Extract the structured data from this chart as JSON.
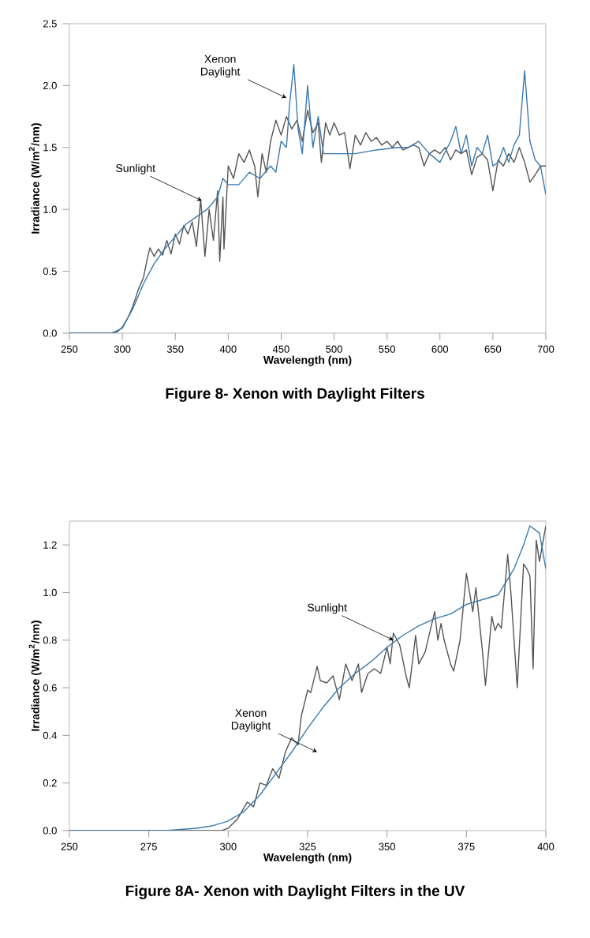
{
  "chart_data": [
    {
      "type": "line",
      "title": "Figure 8- Xenon with Daylight Filters",
      "xlabel": "Wavelength (nm)",
      "ylabel": "Irradiance (W/m$^{2}$/nm)",
      "xlim": [
        250,
        700
      ],
      "ylim": [
        0,
        2.5
      ],
      "xticks": [
        250,
        300,
        350,
        400,
        450,
        500,
        550,
        600,
        650,
        700
      ],
      "yticks": [
        {
          "value": 0,
          "label": "0.0"
        },
        {
          "value": 0.5,
          "label": "0.5"
        },
        {
          "value": 1,
          "label": "1.0"
        },
        {
          "value": 1.5,
          "label": "1.5"
        },
        {
          "value": 2,
          "label": "2.0"
        },
        {
          "value": 2.5,
          "label": "2.5"
        }
      ],
      "series": [
        {
          "color": "#555555",
          "x": [
            250,
            290,
            295,
            300,
            305,
            310,
            315,
            320,
            323,
            326,
            330,
            334,
            338,
            342,
            346,
            350,
            354,
            358,
            362,
            366,
            370,
            374,
            378,
            382,
            386,
            390,
            392,
            395,
            396,
            400,
            405,
            410,
            415,
            420,
            425,
            428,
            432,
            436,
            440,
            445,
            450,
            455,
            460,
            465,
            470,
            475,
            480,
            485,
            488,
            492,
            496,
            500,
            505,
            510,
            515,
            520,
            525,
            530,
            535,
            540,
            545,
            550,
            555,
            560,
            565,
            570,
            575,
            580,
            585,
            590,
            595,
            600,
            605,
            610,
            615,
            620,
            625,
            630,
            635,
            640,
            645,
            650,
            655,
            660,
            665,
            670,
            675,
            680,
            685,
            690,
            695,
            700
          ],
          "values": [
            0,
            0,
            0.01,
            0.05,
            0.12,
            0.22,
            0.35,
            0.45,
            0.58,
            0.69,
            0.62,
            0.68,
            0.63,
            0.75,
            0.64,
            0.8,
            0.72,
            0.87,
            0.8,
            0.9,
            0.7,
            1.08,
            0.62,
            1.0,
            0.75,
            1.15,
            0.58,
            1.1,
            0.68,
            1.35,
            1.25,
            1.45,
            1.38,
            1.48,
            1.35,
            1.1,
            1.45,
            1.3,
            1.55,
            1.72,
            1.6,
            1.75,
            1.65,
            1.72,
            1.55,
            1.8,
            1.62,
            1.7,
            1.38,
            1.7,
            1.6,
            1.7,
            1.6,
            1.62,
            1.33,
            1.6,
            1.52,
            1.62,
            1.55,
            1.58,
            1.52,
            1.55,
            1.5,
            1.55,
            1.48,
            1.5,
            1.52,
            1.5,
            1.35,
            1.45,
            1.48,
            1.45,
            1.5,
            1.4,
            1.48,
            1.45,
            1.48,
            1.28,
            1.42,
            1.45,
            1.4,
            1.15,
            1.4,
            1.35,
            1.45,
            1.38,
            1.5,
            1.38,
            1.22,
            1.28,
            1.35,
            1.35
          ]
        },
        {
          "color": "#3a7ab0",
          "x": [
            250,
            290,
            300,
            310,
            320,
            330,
            340,
            350,
            360,
            370,
            380,
            390,
            395,
            400,
            410,
            420,
            430,
            440,
            445,
            450,
            455,
            458,
            462,
            466,
            470,
            475,
            480,
            485,
            490,
            500,
            520,
            540,
            560,
            570,
            580,
            590,
            600,
            610,
            615,
            620,
            625,
            630,
            635,
            640,
            645,
            650,
            655,
            660,
            665,
            670,
            675,
            680,
            685,
            690,
            695,
            700
          ],
          "values": [
            0,
            0,
            0.04,
            0.2,
            0.4,
            0.56,
            0.68,
            0.78,
            0.88,
            0.94,
            1.0,
            1.1,
            1.25,
            1.2,
            1.2,
            1.3,
            1.25,
            1.35,
            1.3,
            1.55,
            1.5,
            1.85,
            2.17,
            1.65,
            1.45,
            2.0,
            1.5,
            1.75,
            1.45,
            1.45,
            1.45,
            1.48,
            1.5,
            1.5,
            1.55,
            1.45,
            1.38,
            1.55,
            1.67,
            1.45,
            1.6,
            1.35,
            1.5,
            1.45,
            1.6,
            1.35,
            1.38,
            1.5,
            1.38,
            1.52,
            1.6,
            2.12,
            1.55,
            1.4,
            1.35,
            1.12
          ]
        }
      ],
      "annotations": [
        {
          "text": "Sunlight",
          "x": 375,
          "y": 1.07
        },
        {
          "text": "Xenon Daylight",
          "x": 455,
          "y": 1.9
        }
      ]
    },
    {
      "type": "line",
      "title": "Figure 8A- Xenon with Daylight Filters in the UV",
      "xlabel": "Wavelength (nm)",
      "ylabel": "Irradiance (W/m$^{2}$/nm)",
      "xlim": [
        250,
        400
      ],
      "ylim": [
        0,
        1.3
      ],
      "xticks": [
        250,
        275,
        300,
        325,
        350,
        375,
        400
      ],
      "yticks": [
        {
          "value": 0,
          "label": "0.0"
        },
        0.2,
        0.4,
        0.6,
        0.8,
        {
          "value": 1,
          "label": "1.0"
        },
        1.2
      ],
      "series": [
        {
          "color": "#555555",
          "x": [
            250,
            298,
            300,
            303,
            306,
            308,
            310,
            312,
            314,
            316,
            318,
            320,
            322,
            323,
            325,
            326,
            328,
            329,
            331,
            333,
            335,
            337,
            339,
            341,
            342,
            344,
            346,
            348,
            350,
            351,
            352,
            354,
            356,
            357,
            359,
            360,
            362,
            365,
            366,
            367,
            368,
            370,
            371,
            373,
            375,
            376,
            377,
            378,
            380,
            381,
            383,
            384,
            385,
            386,
            388,
            389,
            391,
            393,
            394,
            395,
            396,
            397,
            398,
            400
          ],
          "values": [
            0,
            0,
            0.01,
            0.05,
            0.12,
            0.1,
            0.2,
            0.19,
            0.26,
            0.22,
            0.33,
            0.39,
            0.36,
            0.48,
            0.59,
            0.58,
            0.69,
            0.63,
            0.62,
            0.65,
            0.55,
            0.7,
            0.63,
            0.7,
            0.58,
            0.66,
            0.68,
            0.66,
            0.77,
            0.7,
            0.83,
            0.78,
            0.65,
            0.6,
            0.82,
            0.7,
            0.75,
            0.92,
            0.8,
            0.87,
            0.8,
            0.7,
            0.67,
            0.8,
            1.08,
            1.0,
            0.92,
            1.02,
            0.76,
            0.61,
            0.9,
            0.84,
            0.87,
            0.85,
            1.16,
            1.0,
            0.6,
            1.12,
            1.1,
            1.07,
            0.68,
            1.22,
            1.13,
            1.28
          ]
        },
        {
          "color": "#3a7ab0",
          "x": [
            250,
            280,
            290,
            295,
            300,
            305,
            310,
            315,
            320,
            325,
            330,
            335,
            340,
            345,
            350,
            355,
            360,
            365,
            370,
            375,
            380,
            385,
            390,
            393,
            395,
            398,
            400
          ],
          "values": [
            0,
            0,
            0.01,
            0.02,
            0.04,
            0.08,
            0.15,
            0.24,
            0.33,
            0.43,
            0.52,
            0.6,
            0.66,
            0.71,
            0.77,
            0.82,
            0.86,
            0.89,
            0.91,
            0.95,
            0.97,
            0.99,
            1.1,
            1.2,
            1.28,
            1.25,
            1.1
          ]
        }
      ],
      "annotations": [
        {
          "text": "Sunlight",
          "x": 352,
          "y": 0.8
        },
        {
          "text": "Xenon Daylight",
          "x": 328,
          "y": 0.33
        }
      ]
    }
  ]
}
